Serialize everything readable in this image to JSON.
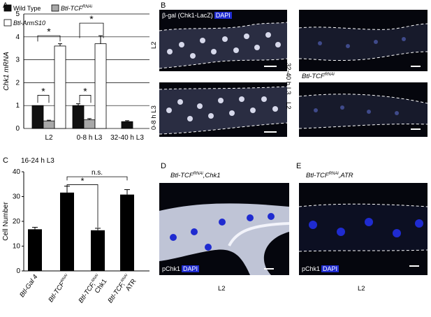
{
  "panel_letters": [
    "A",
    "B",
    "C",
    "D",
    "E"
  ],
  "colors": {
    "wild_type": "#111111",
    "rnai": "#a8a8a8",
    "arms10": "#ffffff",
    "dapi": "#1f2bd0",
    "tissue": "#bfc4d6"
  },
  "chart_data": [
    {
      "type": "bar",
      "ylabel": "Chk1 mRNA",
      "ylim": [
        0,
        5
      ],
      "yticks": [
        "0",
        "1",
        "2",
        "3",
        "4",
        "5"
      ],
      "categories": [
        "L2",
        "0-8 h L3",
        "32-40 h L3"
      ],
      "series": [
        {
          "name": "Wild Type",
          "values": [
            1.0,
            1.0,
            0.3
          ],
          "errors": [
            0.0,
            0.08,
            0.04
          ]
        },
        {
          "name": "Btl-TCF",
          "name_sup": "RNAi",
          "values": [
            0.33,
            0.38,
            null
          ],
          "errors": [
            0.03,
            0.05,
            0
          ]
        },
        {
          "name": "Btl-ArmS10",
          "values": [
            3.6,
            3.7,
            null
          ],
          "errors": [
            0.1,
            0.35,
            0
          ]
        }
      ],
      "annotations": [
        "*",
        "*",
        "*",
        "*"
      ]
    },
    {
      "type": "bar",
      "title": "16-24 h L3",
      "ylabel": "Cell Number",
      "ylim": [
        0,
        40
      ],
      "yticks": [
        "0",
        "10",
        "20",
        "30",
        "40"
      ],
      "categories": [
        {
          "line1": "Btl-Gal 4",
          "line2": "",
          "sup": ""
        },
        {
          "line1": "Btl-TCF",
          "line2": "",
          "sup": "RNAi"
        },
        {
          "line1": "Btl-TCF,",
          "line2": "Chk1",
          "sup": "RNAi"
        },
        {
          "line1": "Btl-TCF,",
          "line2": "ATR",
          "sup": "RNAi"
        }
      ],
      "values": [
        16.8,
        31.6,
        16.4,
        30.8
      ],
      "errors": [
        0.8,
        2.6,
        0.8,
        2.0
      ],
      "annotations": [
        "*",
        "n.s."
      ]
    }
  ],
  "panel_b": {
    "top_left": {
      "stain": "β-gal (Chk1-LacZ)",
      "dapi": "DAPI",
      "side": "L2"
    },
    "top_right": {
      "side": "32-40 h L3"
    },
    "genotype": {
      "text": "Btl-TCF",
      "sup": "RNAi"
    },
    "bottom_left": {
      "side": "0-8 h L3"
    },
    "bottom_right": {
      "side": "L2"
    }
  },
  "panel_d": {
    "genotype": "Btl-TCF",
    "sup": "RNAi",
    "suffix": ",Chk1",
    "stain": "pChk1",
    "dapi": "DAPI",
    "caption": "L2"
  },
  "panel_e": {
    "genotype": "Btl-TCF",
    "sup": "RNAi",
    "suffix": ",ATR",
    "stain": "pChk1",
    "dapi": "DAPI",
    "caption": "L2"
  }
}
